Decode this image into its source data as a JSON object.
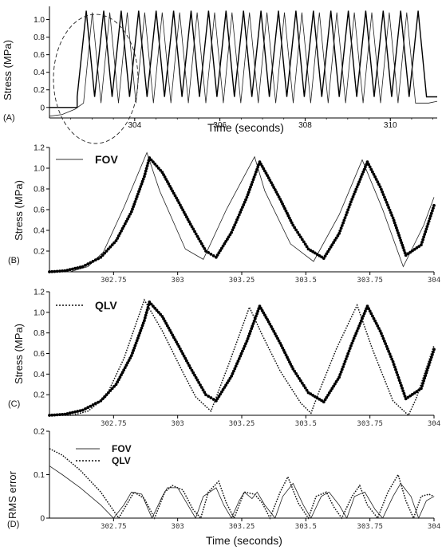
{
  "colors": {
    "axis": "#000000",
    "fov": "#333333",
    "qlv": "#111111",
    "data": "#000000"
  },
  "panels": [
    {
      "id": "A",
      "panel_label": "(A)",
      "ylabel": "Stress (MPa)",
      "xlabel": "Time (seconds)",
      "yticks": [
        "0",
        "0.2",
        "0.4",
        "0.6",
        "0.8",
        "1.0"
      ],
      "xticks": [
        "304",
        "306",
        "308",
        "310"
      ]
    },
    {
      "id": "B",
      "panel_label": "(B)",
      "ylabel": "Stress (MPa)",
      "legend": "FOV",
      "yticks": [
        "0.2",
        "0.4",
        "0.6",
        "0.8",
        "1.0",
        "1.2"
      ],
      "xticks": [
        "302.75",
        "303",
        "303.25",
        "303.5",
        "303.75",
        "304"
      ]
    },
    {
      "id": "C",
      "panel_label": "(C)",
      "ylabel": "Stress (MPa)",
      "legend": "QLV",
      "yticks": [
        "0.2",
        "0.4",
        "0.6",
        "0.8",
        "1.0",
        "1.2"
      ],
      "xticks": [
        "302.75",
        "303",
        "303.25",
        "303.5",
        "303.75",
        "304"
      ]
    },
    {
      "id": "D",
      "panel_label": "(D)",
      "ylabel": "RMS error",
      "xlabel": "Time (seconds)",
      "legend": [
        "FOV",
        "QLV"
      ],
      "yticks": [
        "0",
        "0.1",
        "0.2"
      ],
      "xticks": [
        "302.75",
        "303",
        "303.25",
        "303.5",
        "303.75",
        "304"
      ]
    }
  ],
  "chart_data": [
    {
      "type": "line",
      "panel": "A",
      "xlim": [
        302.0,
        311.1
      ],
      "ylim": [
        -0.12,
        1.15
      ],
      "annotation": "dashed ellipse around first three cycles",
      "series": [
        {
          "kind": "data",
          "segments": [
            {
              "x": [
                302.0,
                302.65
              ],
              "y": [
                0.0,
                0.0
              ]
            },
            {
              "cycles": {
                "start": 302.65,
                "period": 0.41,
                "count": 20,
                "peak": 1.1,
                "trough": 0.12,
                "rise_fraction": 0.52
              }
            },
            {
              "x": [
                310.85,
                311.1
              ],
              "y": [
                0.12,
                0.12
              ]
            }
          ]
        },
        {
          "kind": "model",
          "segments": [
            {
              "x": [
                302.0,
                302.3,
                302.6,
                302.8
              ],
              "y": [
                -0.1,
                -0.08,
                -0.02,
                0.05
              ]
            },
            {
              "cycles": {
                "start": 302.8,
                "period": 0.41,
                "count": 19,
                "peak": 1.08,
                "trough": 0.05,
                "rise_fraction": 0.5
              }
            },
            {
              "x": [
                310.9,
                311.1
              ],
              "y": [
                0.05,
                0.07
              ]
            }
          ]
        }
      ]
    },
    {
      "type": "line",
      "panel": "B",
      "xlim": [
        302.5,
        304.0
      ],
      "ylim": [
        0.0,
        1.2
      ],
      "series": [
        {
          "name": "FOV",
          "style": "thin-solid",
          "x": [
            302.5,
            302.58,
            302.65,
            302.71,
            302.79,
            302.88,
            302.93,
            303.03,
            303.1,
            303.19,
            303.3,
            303.34,
            303.44,
            303.53,
            303.63,
            303.72,
            303.8,
            303.88,
            303.96,
            304.0
          ],
          "y": [
            0.0,
            0.0,
            0.05,
            0.19,
            0.62,
            1.15,
            0.78,
            0.22,
            0.12,
            0.6,
            1.11,
            0.78,
            0.27,
            0.1,
            0.55,
            1.08,
            0.6,
            0.05,
            0.45,
            0.72
          ]
        },
        {
          "name": "data",
          "style": "dots",
          "x": [
            302.5,
            302.56,
            302.63,
            302.7,
            302.76,
            302.82,
            302.87,
            302.89,
            302.94,
            303.0,
            303.05,
            303.11,
            303.15,
            303.21,
            303.27,
            303.32,
            303.35,
            303.4,
            303.45,
            303.51,
            303.57,
            303.63,
            303.68,
            303.74,
            303.79,
            303.84,
            303.89,
            303.95,
            304.0
          ],
          "y": [
            0.0,
            0.01,
            0.05,
            0.14,
            0.3,
            0.58,
            0.92,
            1.1,
            0.96,
            0.69,
            0.46,
            0.2,
            0.14,
            0.38,
            0.72,
            1.06,
            0.93,
            0.7,
            0.45,
            0.22,
            0.13,
            0.37,
            0.7,
            1.06,
            0.82,
            0.52,
            0.16,
            0.26,
            0.64
          ]
        }
      ]
    },
    {
      "type": "line",
      "panel": "C",
      "xlim": [
        302.5,
        304.0
      ],
      "ylim": [
        0.0,
        1.2
      ],
      "series": [
        {
          "name": "QLV",
          "style": "dotted",
          "x": [
            302.5,
            302.59,
            302.65,
            302.72,
            302.79,
            302.87,
            302.94,
            303.02,
            303.07,
            303.13,
            303.2,
            303.28,
            303.33,
            303.4,
            303.48,
            303.52,
            303.55,
            303.62,
            303.7,
            303.76,
            303.84,
            303.9,
            303.93,
            304.0
          ],
          "y": [
            0.0,
            0.0,
            0.04,
            0.18,
            0.55,
            1.12,
            0.82,
            0.42,
            0.18,
            0.04,
            0.5,
            1.05,
            0.78,
            0.43,
            0.12,
            0.02,
            0.22,
            0.65,
            1.07,
            0.64,
            0.14,
            0.0,
            0.16,
            0.68
          ]
        },
        {
          "name": "data",
          "style": "dots",
          "x": [
            302.5,
            302.56,
            302.63,
            302.7,
            302.76,
            302.82,
            302.87,
            302.89,
            302.94,
            303.0,
            303.05,
            303.11,
            303.15,
            303.21,
            303.27,
            303.32,
            303.35,
            303.4,
            303.45,
            303.51,
            303.57,
            303.63,
            303.68,
            303.74,
            303.79,
            303.84,
            303.89,
            303.95,
            304.0
          ],
          "y": [
            0.0,
            0.01,
            0.05,
            0.14,
            0.3,
            0.58,
            0.92,
            1.1,
            0.96,
            0.69,
            0.46,
            0.2,
            0.14,
            0.38,
            0.72,
            1.06,
            0.93,
            0.7,
            0.45,
            0.22,
            0.13,
            0.37,
            0.7,
            1.06,
            0.82,
            0.52,
            0.16,
            0.26,
            0.64
          ]
        }
      ]
    },
    {
      "type": "line",
      "panel": "D",
      "xlim": [
        302.5,
        304.0
      ],
      "ylim": [
        0.0,
        0.2
      ],
      "series": [
        {
          "name": "FOV",
          "style": "thin-solid",
          "x": [
            302.5,
            302.55,
            302.62,
            302.7,
            302.75,
            302.79,
            302.82,
            302.86,
            302.9,
            302.94,
            302.96,
            303.0,
            303.04,
            303.07,
            303.1,
            303.15,
            303.18,
            303.21,
            303.24,
            303.26,
            303.29,
            303.31,
            303.34,
            303.38,
            303.41,
            303.45,
            303.49,
            303.52,
            303.56,
            303.59,
            303.63,
            303.66,
            303.69,
            303.73,
            303.77,
            303.8,
            303.84,
            303.87,
            303.91,
            303.94,
            303.97,
            304.0
          ],
          "y": [
            0.12,
            0.1,
            0.07,
            0.03,
            0.0,
            0.03,
            0.06,
            0.055,
            0.0,
            0.05,
            0.07,
            0.07,
            0.03,
            0.0,
            0.05,
            0.07,
            0.03,
            0.0,
            0.04,
            0.06,
            0.045,
            0.06,
            0.03,
            0.0,
            0.05,
            0.08,
            0.03,
            0.0,
            0.05,
            0.06,
            0.03,
            0.0,
            0.05,
            0.06,
            0.02,
            0.0,
            0.05,
            0.08,
            0.05,
            0.0,
            0.04,
            0.05
          ]
        },
        {
          "name": "QLV",
          "style": "dotted",
          "x": [
            302.5,
            302.55,
            302.62,
            302.7,
            302.77,
            302.8,
            302.83,
            302.87,
            302.91,
            302.95,
            302.98,
            303.02,
            303.06,
            303.09,
            303.12,
            303.16,
            303.19,
            303.22,
            303.26,
            303.3,
            303.33,
            303.36,
            303.4,
            303.43,
            303.47,
            303.51,
            303.54,
            303.58,
            303.61,
            303.64,
            303.68,
            303.71,
            303.74,
            303.78,
            303.82,
            303.86,
            303.89,
            303.92,
            303.95,
            303.98,
            304.0
          ],
          "y": [
            0.16,
            0.145,
            0.11,
            0.06,
            0.0,
            0.03,
            0.06,
            0.045,
            0.0,
            0.06,
            0.075,
            0.065,
            0.02,
            0.0,
            0.06,
            0.085,
            0.035,
            0.0,
            0.06,
            0.055,
            0.035,
            0.0,
            0.06,
            0.095,
            0.035,
            0.0,
            0.05,
            0.06,
            0.025,
            0.0,
            0.05,
            0.075,
            0.03,
            0.0,
            0.06,
            0.1,
            0.04,
            0.0,
            0.05,
            0.055,
            0.05
          ]
        }
      ]
    }
  ]
}
